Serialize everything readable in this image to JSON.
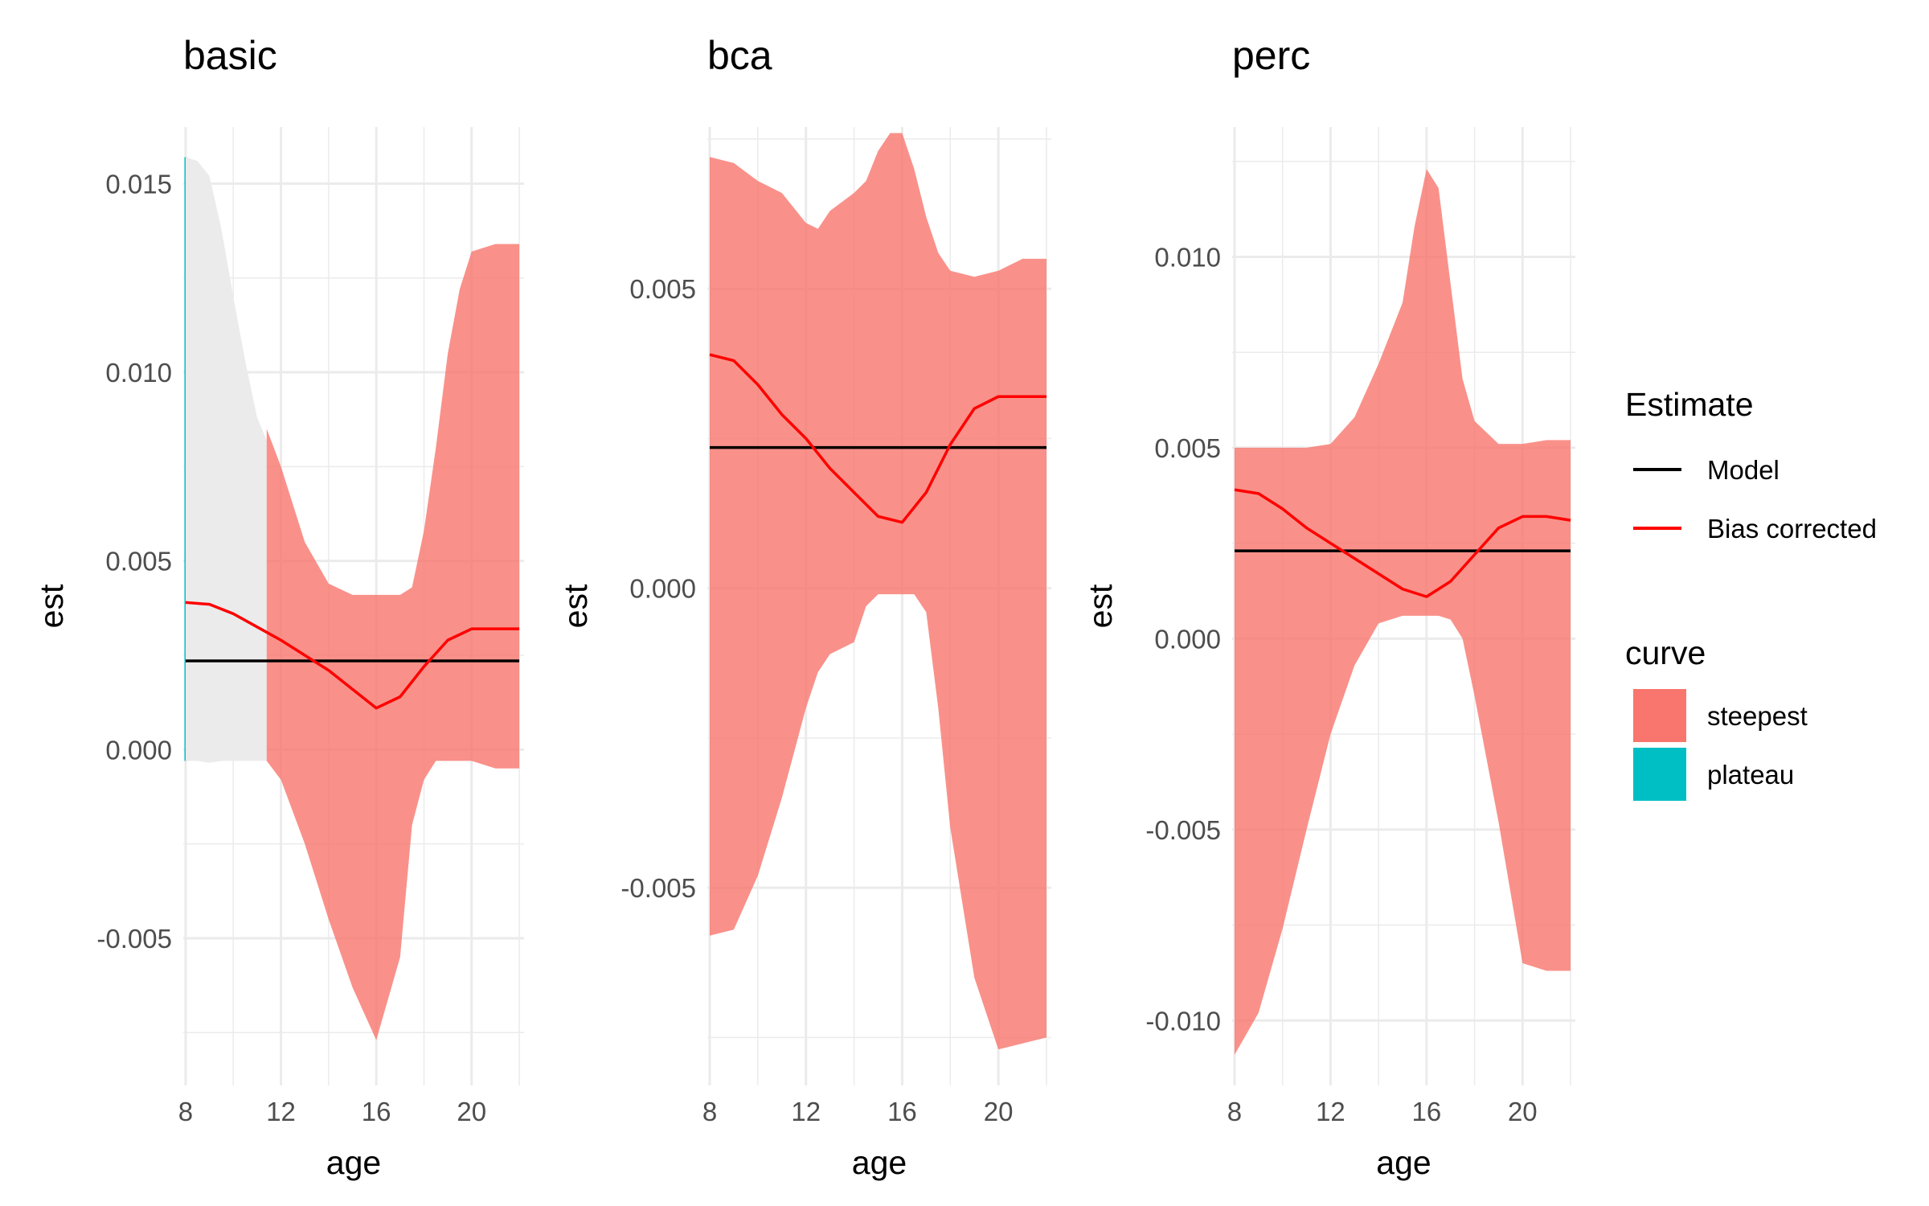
{
  "legend": {
    "line_title": "Estimate",
    "lines": [
      {
        "label": "Model",
        "color": "#000000"
      },
      {
        "label": "Bias corrected",
        "color": "#ff0000"
      }
    ],
    "fill_title": "curve",
    "fills": [
      {
        "label": "steepest",
        "color": "#f8766d"
      },
      {
        "label": "plateau",
        "color": "#00bfc4"
      }
    ],
    "placement": "right"
  },
  "chart_data": [
    {
      "type": "area",
      "title": "basic",
      "xlabel": "age",
      "ylabel": "est",
      "xlim": [
        7.9,
        22.2
      ],
      "ylim": [
        -0.0089,
        0.0165
      ],
      "xticks": [
        8,
        12,
        16,
        20
      ],
      "xtick_labels": [
        "8",
        "12",
        "16",
        "20"
      ],
      "yticks": [
        -0.005,
        0.0,
        0.005,
        0.01,
        0.015
      ],
      "ytick_labels": [
        "-0.005",
        "0.000",
        "0.005",
        "0.010",
        "0.015"
      ],
      "grid": true,
      "model_estimate": 0.00235,
      "bias_corrected": {
        "x": [
          8,
          9,
          10,
          11,
          12,
          13,
          14,
          15,
          16,
          17,
          18,
          19,
          20,
          21,
          22
        ],
        "y": [
          0.0039,
          0.00385,
          0.0036,
          0.00325,
          0.0029,
          0.0025,
          0.0021,
          0.0016,
          0.0011,
          0.0014,
          0.0022,
          0.0029,
          0.0032,
          0.0032,
          0.0032
        ]
      },
      "bands": [
        {
          "curve": "plateau",
          "color": "#00bfc4",
          "x": [
            8,
            8
          ],
          "upper": [
            0.0157,
            0.0157
          ],
          "lower": [
            -0.0003,
            -0.0003
          ]
        },
        {
          "curve": "ribbon",
          "color": "#ebebeb",
          "x": [
            8,
            8.5,
            9,
            9.5,
            10,
            10.5,
            11,
            11.4
          ],
          "upper": [
            0.0157,
            0.0156,
            0.0152,
            0.0138,
            0.012,
            0.0103,
            0.0088,
            0.0082
          ],
          "lower": [
            -0.0003,
            -0.0003,
            -0.00035,
            -0.0003,
            -0.0003,
            -0.0003,
            -0.0003,
            -0.0003
          ]
        },
        {
          "curve": "steepest",
          "color": "#f8766d",
          "x": [
            11.4,
            12,
            13,
            14,
            15,
            16,
            17,
            17.5,
            18,
            18.5,
            19,
            19.5,
            20,
            21,
            22
          ],
          "upper": [
            0.0085,
            0.0075,
            0.0055,
            0.0044,
            0.0041,
            0.0041,
            0.0041,
            0.0043,
            0.0058,
            0.008,
            0.0105,
            0.0122,
            0.0132,
            0.0134,
            0.0134
          ],
          "lower": [
            -0.0003,
            -0.0008,
            -0.0025,
            -0.0045,
            -0.0063,
            -0.0077,
            -0.0055,
            -0.002,
            -0.0008,
            -0.0003,
            -0.0003,
            -0.0003,
            -0.0003,
            -0.0005,
            -0.0005
          ]
        }
      ]
    },
    {
      "type": "area",
      "title": "bca",
      "xlabel": "age",
      "ylabel": "est",
      "xlim": [
        7.9,
        22.2
      ],
      "ylim": [
        -0.0083,
        0.0077
      ],
      "xticks": [
        8,
        12,
        16,
        20
      ],
      "xtick_labels": [
        "8",
        "12",
        "16",
        "20"
      ],
      "yticks": [
        -0.005,
        0.0,
        0.005
      ],
      "ytick_labels": [
        "-0.005",
        "0.000",
        "0.005"
      ],
      "grid": true,
      "model_estimate": 0.00235,
      "bias_corrected": {
        "x": [
          8,
          9,
          10,
          11,
          12,
          13,
          14,
          15,
          16,
          17,
          18,
          19,
          20,
          21,
          22
        ],
        "y": [
          0.0039,
          0.0038,
          0.0034,
          0.0029,
          0.0025,
          0.002,
          0.0016,
          0.0012,
          0.0011,
          0.0016,
          0.0024,
          0.003,
          0.0032,
          0.0032,
          0.0032
        ]
      },
      "bands": [
        {
          "curve": "steepest",
          "color": "#f8766d",
          "x": [
            8,
            9,
            10,
            11,
            12,
            12.5,
            13,
            14,
            14.5,
            15,
            15.5,
            16,
            16.5,
            17,
            17.5,
            18,
            19,
            20,
            21,
            22
          ],
          "upper": [
            0.0072,
            0.0071,
            0.0068,
            0.0066,
            0.0061,
            0.006,
            0.0063,
            0.0066,
            0.0068,
            0.0073,
            0.0076,
            0.0076,
            0.007,
            0.0062,
            0.0056,
            0.0053,
            0.0052,
            0.0053,
            0.0055,
            0.0055
          ],
          "lower": [
            -0.0058,
            -0.0057,
            -0.0048,
            -0.0035,
            -0.002,
            -0.0014,
            -0.0011,
            -0.0009,
            -0.0003,
            -0.0001,
            -0.0001,
            -0.0001,
            -0.0001,
            -0.0004,
            -0.002,
            -0.004,
            -0.0065,
            -0.0077,
            -0.0076,
            -0.0075
          ]
        }
      ]
    },
    {
      "type": "area",
      "title": "perc",
      "xlabel": "age",
      "ylabel": "est",
      "xlim": [
        7.9,
        22.2
      ],
      "ylim": [
        -0.0117,
        0.0134
      ],
      "xticks": [
        8,
        12,
        16,
        20
      ],
      "xtick_labels": [
        "8",
        "12",
        "16",
        "20"
      ],
      "yticks": [
        -0.01,
        -0.005,
        0.0,
        0.005,
        0.01
      ],
      "ytick_labels": [
        "-0.010",
        "-0.005",
        "0.000",
        "0.005",
        "0.010"
      ],
      "grid": true,
      "model_estimate": 0.0023,
      "bias_corrected": {
        "x": [
          8,
          9,
          10,
          11,
          12,
          13,
          14,
          15,
          16,
          17,
          18,
          19,
          20,
          21,
          22
        ],
        "y": [
          0.0039,
          0.0038,
          0.0034,
          0.0029,
          0.0025,
          0.0021,
          0.0017,
          0.0013,
          0.0011,
          0.0015,
          0.0022,
          0.0029,
          0.0032,
          0.0032,
          0.0031
        ]
      },
      "bands": [
        {
          "curve": "steepest",
          "color": "#f8766d",
          "x": [
            8,
            9,
            10,
            11,
            12,
            13,
            14,
            15,
            15.5,
            16,
            16.5,
            17,
            17.5,
            18,
            19,
            20,
            21,
            22
          ],
          "upper": [
            0.005,
            0.005,
            0.005,
            0.005,
            0.0051,
            0.0058,
            0.0072,
            0.0088,
            0.0108,
            0.0123,
            0.0118,
            0.0093,
            0.0068,
            0.0057,
            0.0051,
            0.0051,
            0.0052,
            0.0052
          ],
          "lower": [
            -0.0109,
            -0.0098,
            -0.0076,
            -0.005,
            -0.0025,
            -0.0007,
            0.0004,
            0.0006,
            0.0006,
            0.0006,
            0.0006,
            0.0005,
            0.0,
            -0.0015,
            -0.0048,
            -0.0085,
            -0.0087,
            -0.0087
          ]
        }
      ]
    }
  ]
}
